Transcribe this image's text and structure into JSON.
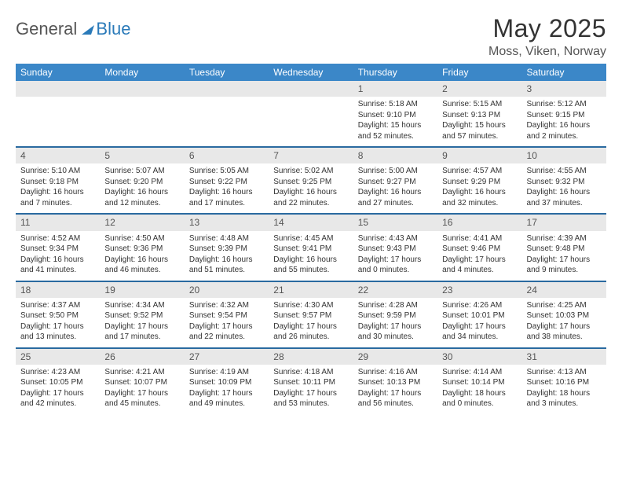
{
  "brand": {
    "general": "General",
    "blue": "Blue"
  },
  "header": {
    "month": "May 2025",
    "location": "Moss, Viken, Norway"
  },
  "columns": [
    "Sunday",
    "Monday",
    "Tuesday",
    "Wednesday",
    "Thursday",
    "Friday",
    "Saturday"
  ],
  "style": {
    "header_bg": "#3b87c8",
    "header_text": "#ffffff",
    "row_sep": "#2a6aa0",
    "daynum_bg": "#e8e8e8",
    "brand_blue": "#2a7ab9"
  },
  "weeks": [
    [
      null,
      null,
      null,
      null,
      {
        "n": "1",
        "sr": "Sunrise: 5:18 AM",
        "ss": "Sunset: 9:10 PM",
        "dl": "Daylight: 15 hours and 52 minutes."
      },
      {
        "n": "2",
        "sr": "Sunrise: 5:15 AM",
        "ss": "Sunset: 9:13 PM",
        "dl": "Daylight: 15 hours and 57 minutes."
      },
      {
        "n": "3",
        "sr": "Sunrise: 5:12 AM",
        "ss": "Sunset: 9:15 PM",
        "dl": "Daylight: 16 hours and 2 minutes."
      }
    ],
    [
      {
        "n": "4",
        "sr": "Sunrise: 5:10 AM",
        "ss": "Sunset: 9:18 PM",
        "dl": "Daylight: 16 hours and 7 minutes."
      },
      {
        "n": "5",
        "sr": "Sunrise: 5:07 AM",
        "ss": "Sunset: 9:20 PM",
        "dl": "Daylight: 16 hours and 12 minutes."
      },
      {
        "n": "6",
        "sr": "Sunrise: 5:05 AM",
        "ss": "Sunset: 9:22 PM",
        "dl": "Daylight: 16 hours and 17 minutes."
      },
      {
        "n": "7",
        "sr": "Sunrise: 5:02 AM",
        "ss": "Sunset: 9:25 PM",
        "dl": "Daylight: 16 hours and 22 minutes."
      },
      {
        "n": "8",
        "sr": "Sunrise: 5:00 AM",
        "ss": "Sunset: 9:27 PM",
        "dl": "Daylight: 16 hours and 27 minutes."
      },
      {
        "n": "9",
        "sr": "Sunrise: 4:57 AM",
        "ss": "Sunset: 9:29 PM",
        "dl": "Daylight: 16 hours and 32 minutes."
      },
      {
        "n": "10",
        "sr": "Sunrise: 4:55 AM",
        "ss": "Sunset: 9:32 PM",
        "dl": "Daylight: 16 hours and 37 minutes."
      }
    ],
    [
      {
        "n": "11",
        "sr": "Sunrise: 4:52 AM",
        "ss": "Sunset: 9:34 PM",
        "dl": "Daylight: 16 hours and 41 minutes."
      },
      {
        "n": "12",
        "sr": "Sunrise: 4:50 AM",
        "ss": "Sunset: 9:36 PM",
        "dl": "Daylight: 16 hours and 46 minutes."
      },
      {
        "n": "13",
        "sr": "Sunrise: 4:48 AM",
        "ss": "Sunset: 9:39 PM",
        "dl": "Daylight: 16 hours and 51 minutes."
      },
      {
        "n": "14",
        "sr": "Sunrise: 4:45 AM",
        "ss": "Sunset: 9:41 PM",
        "dl": "Daylight: 16 hours and 55 minutes."
      },
      {
        "n": "15",
        "sr": "Sunrise: 4:43 AM",
        "ss": "Sunset: 9:43 PM",
        "dl": "Daylight: 17 hours and 0 minutes."
      },
      {
        "n": "16",
        "sr": "Sunrise: 4:41 AM",
        "ss": "Sunset: 9:46 PM",
        "dl": "Daylight: 17 hours and 4 minutes."
      },
      {
        "n": "17",
        "sr": "Sunrise: 4:39 AM",
        "ss": "Sunset: 9:48 PM",
        "dl": "Daylight: 17 hours and 9 minutes."
      }
    ],
    [
      {
        "n": "18",
        "sr": "Sunrise: 4:37 AM",
        "ss": "Sunset: 9:50 PM",
        "dl": "Daylight: 17 hours and 13 minutes."
      },
      {
        "n": "19",
        "sr": "Sunrise: 4:34 AM",
        "ss": "Sunset: 9:52 PM",
        "dl": "Daylight: 17 hours and 17 minutes."
      },
      {
        "n": "20",
        "sr": "Sunrise: 4:32 AM",
        "ss": "Sunset: 9:54 PM",
        "dl": "Daylight: 17 hours and 22 minutes."
      },
      {
        "n": "21",
        "sr": "Sunrise: 4:30 AM",
        "ss": "Sunset: 9:57 PM",
        "dl": "Daylight: 17 hours and 26 minutes."
      },
      {
        "n": "22",
        "sr": "Sunrise: 4:28 AM",
        "ss": "Sunset: 9:59 PM",
        "dl": "Daylight: 17 hours and 30 minutes."
      },
      {
        "n": "23",
        "sr": "Sunrise: 4:26 AM",
        "ss": "Sunset: 10:01 PM",
        "dl": "Daylight: 17 hours and 34 minutes."
      },
      {
        "n": "24",
        "sr": "Sunrise: 4:25 AM",
        "ss": "Sunset: 10:03 PM",
        "dl": "Daylight: 17 hours and 38 minutes."
      }
    ],
    [
      {
        "n": "25",
        "sr": "Sunrise: 4:23 AM",
        "ss": "Sunset: 10:05 PM",
        "dl": "Daylight: 17 hours and 42 minutes."
      },
      {
        "n": "26",
        "sr": "Sunrise: 4:21 AM",
        "ss": "Sunset: 10:07 PM",
        "dl": "Daylight: 17 hours and 45 minutes."
      },
      {
        "n": "27",
        "sr": "Sunrise: 4:19 AM",
        "ss": "Sunset: 10:09 PM",
        "dl": "Daylight: 17 hours and 49 minutes."
      },
      {
        "n": "28",
        "sr": "Sunrise: 4:18 AM",
        "ss": "Sunset: 10:11 PM",
        "dl": "Daylight: 17 hours and 53 minutes."
      },
      {
        "n": "29",
        "sr": "Sunrise: 4:16 AM",
        "ss": "Sunset: 10:13 PM",
        "dl": "Daylight: 17 hours and 56 minutes."
      },
      {
        "n": "30",
        "sr": "Sunrise: 4:14 AM",
        "ss": "Sunset: 10:14 PM",
        "dl": "Daylight: 18 hours and 0 minutes."
      },
      {
        "n": "31",
        "sr": "Sunrise: 4:13 AM",
        "ss": "Sunset: 10:16 PM",
        "dl": "Daylight: 18 hours and 3 minutes."
      }
    ]
  ]
}
